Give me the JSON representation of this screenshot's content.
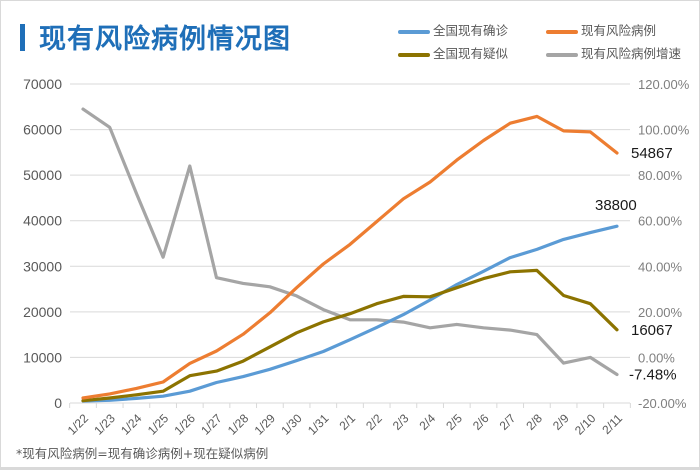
{
  "title": "现有风险病例情况图",
  "footnote": "*现有风险病例=现有确诊病例+现在疑似病例",
  "colors": {
    "title": "#1f6fb8",
    "confirmed": "#5b9bd5",
    "risk": "#ed7d31",
    "suspected": "#8c7300",
    "growth": "#a5a5a5",
    "grid": "#d9d9d9"
  },
  "chart_data": {
    "type": "line",
    "title": "现有风险病例情况图",
    "xlabel": "",
    "ylabel": "",
    "x": [
      "1/22",
      "1/23",
      "1/24",
      "1/25",
      "1/26",
      "1/27",
      "1/28",
      "1/29",
      "1/30",
      "1/31",
      "2/1",
      "2/2",
      "2/3",
      "2/4",
      "2/5",
      "2/6",
      "2/7",
      "2/8",
      "2/9",
      "2/10",
      "2/11"
    ],
    "y_left": {
      "min": 0,
      "max": 70000,
      "ticks": [
        "0",
        "10000",
        "20000",
        "30000",
        "40000",
        "50000",
        "60000",
        "70000"
      ],
      "tick_values": [
        0,
        10000,
        20000,
        30000,
        40000,
        50000,
        60000,
        70000
      ]
    },
    "y_right": {
      "min": -0.2,
      "max": 1.2,
      "ticks": [
        "-20.00%",
        "0.00%",
        "20.00%",
        "40.00%",
        "60.00%",
        "80.00%",
        "100.00%",
        "120.00%"
      ],
      "tick_values": [
        -0.2,
        0,
        0.2,
        0.4,
        0.6,
        0.8,
        1.0,
        1.2
      ]
    },
    "grid": true,
    "legend_position": "top-right",
    "series": [
      {
        "name": "全国现有确诊",
        "axis": "left",
        "color": "#5b9bd5",
        "values": [
          440,
          600,
          1000,
          1500,
          2600,
          4500,
          5800,
          7400,
          9300,
          11300,
          13900,
          16600,
          19400,
          22600,
          26000,
          28900,
          31900,
          33700,
          35900,
          37400,
          38800
        ],
        "end_label": "38800"
      },
      {
        "name": "现有风险病例",
        "axis": "left",
        "color": "#ed7d31",
        "values": [
          1100,
          2000,
          3200,
          4600,
          8700,
          11400,
          15100,
          19800,
          25300,
          30500,
          34800,
          39800,
          44800,
          48500,
          53300,
          57600,
          61400,
          62900,
          59700,
          59500,
          54867
        ],
        "end_label": "54867"
      },
      {
        "name": "全国现有疑似",
        "axis": "left",
        "color": "#8c7300",
        "values": [
          500,
          1100,
          1800,
          2600,
          6000,
          7000,
          9200,
          12300,
          15400,
          17800,
          19600,
          21800,
          23400,
          23300,
          25300,
          27300,
          28800,
          29100,
          23600,
          21800,
          16067
        ],
        "end_label": "16067"
      },
      {
        "name": "现有风险病例增速",
        "axis": "right",
        "color": "#a5a5a5",
        "values": [
          1.09,
          1.01,
          0.72,
          0.44,
          0.84,
          0.35,
          0.325,
          0.31,
          0.27,
          0.21,
          0.165,
          0.165,
          0.155,
          0.13,
          0.145,
          0.13,
          0.12,
          0.1,
          -0.025,
          0.0,
          -0.0748
        ],
        "end_label": "-7.48%"
      }
    ]
  },
  "legend": [
    {
      "label": "全国现有确诊",
      "color": "#5b9bd5"
    },
    {
      "label": "现有风险病例",
      "color": "#ed7d31"
    },
    {
      "label": "全国现有疑似",
      "color": "#8c7300"
    },
    {
      "label": "现有风险病例增速",
      "color": "#a5a5a5"
    }
  ]
}
